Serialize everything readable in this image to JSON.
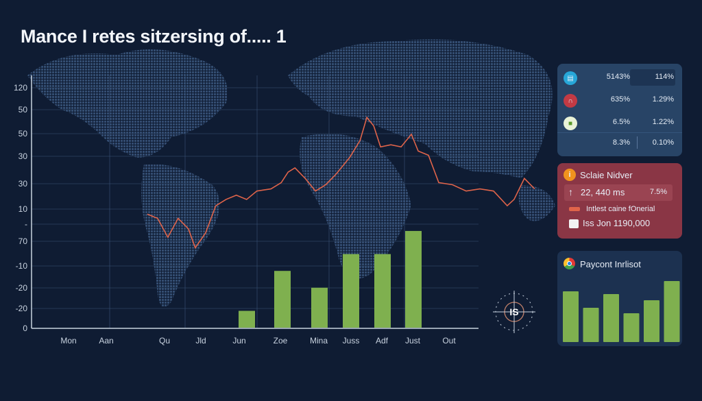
{
  "title": "Mance I retes sitzersing of.....  1",
  "chart_data": {
    "type": "bar+line",
    "title": "Mance I retes sitzersing of.....  1",
    "y_tick_labels": [
      "120",
      "50",
      "50",
      "30",
      "30",
      "10",
      "-",
      "70",
      "-10",
      "-20",
      "-20",
      "0"
    ],
    "x_tick_labels": [
      "Mon",
      "Aan",
      "Qu",
      "Jld",
      "Jun",
      "Zoe",
      "Mina",
      "Juss",
      "Adf",
      "Just",
      "Out"
    ],
    "ylim": [
      0,
      120
    ],
    "grid": true,
    "background": "world map",
    "bar_color": "#7fb04f",
    "line_color": "#e0644a",
    "bars": {
      "categories": [
        "Jun",
        "Zoe",
        "Mina",
        "Juss",
        "Adf",
        "Just"
      ],
      "values": [
        8,
        27,
        19,
        35,
        35,
        46
      ]
    },
    "line": {
      "points": [
        [
          2.07,
          54
        ],
        [
          2.34,
          52
        ],
        [
          2.61,
          43
        ],
        [
          2.88,
          52
        ],
        [
          3.15,
          47
        ],
        [
          3.33,
          38
        ],
        [
          3.6,
          45
        ],
        [
          3.87,
          58
        ],
        [
          4.14,
          61
        ],
        [
          4.41,
          63
        ],
        [
          4.68,
          61
        ],
        [
          4.95,
          65
        ],
        [
          5.32,
          66
        ],
        [
          5.59,
          69
        ],
        [
          5.77,
          74
        ],
        [
          5.95,
          76
        ],
        [
          6.22,
          71
        ],
        [
          6.49,
          65
        ],
        [
          6.76,
          68
        ],
        [
          7.03,
          73
        ],
        [
          7.39,
          81
        ],
        [
          7.66,
          89
        ],
        [
          7.84,
          100
        ],
        [
          8.02,
          96
        ],
        [
          8.2,
          86
        ],
        [
          8.47,
          87
        ],
        [
          8.74,
          86
        ],
        [
          9.01,
          92
        ],
        [
          9.19,
          84
        ],
        [
          9.46,
          82
        ],
        [
          9.73,
          69
        ],
        [
          10.09,
          68
        ],
        [
          10.45,
          65
        ],
        [
          10.81,
          66
        ],
        [
          11.17,
          65
        ],
        [
          11.53,
          58
        ],
        [
          11.71,
          61
        ],
        [
          11.98,
          71
        ],
        [
          12.25,
          66
        ]
      ]
    }
  },
  "stats_panel": {
    "rows": [
      {
        "icon": "calendar-icon",
        "color": "#27a7d8",
        "v1": "5143%",
        "v2": "114%"
      },
      {
        "icon": "arch-icon",
        "color": "#c23a44",
        "v1": "635%",
        "v2": "1.29%"
      },
      {
        "icon": "card-icon",
        "color": "#8bc34a",
        "v1": "6.5%",
        "v2": "1.22%"
      },
      {
        "icon": "",
        "color": "",
        "v1": "8.3%",
        "v2": "0.10%"
      }
    ]
  },
  "alert_panel": {
    "title": "Sclaie Nidver",
    "value": "22, 440 ms",
    "pct": "7.5%",
    "legend": "Intlest caine fOnerial",
    "footer": "Iss Jon 1190,000",
    "color": "#8a3645"
  },
  "mini_chart": {
    "title": "Paycont Inrlisot",
    "values": [
      74,
      50,
      70,
      42,
      61,
      89
    ],
    "color": "#7fb04f"
  },
  "badge": {
    "text": "IS"
  }
}
